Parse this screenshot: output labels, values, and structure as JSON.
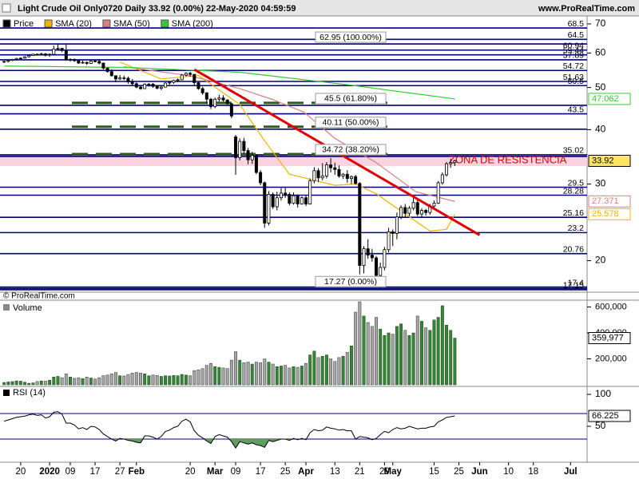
{
  "header": {
    "title": "Light Crude Oil Only0720 Daily 33.92 (0.00%) 22-May-2020 04:59:59",
    "site": "www.ProRealTime.com",
    "copyright": "© ProRealTime.com"
  },
  "chart_data": [
    {
      "type": "candlestick",
      "name": "Price",
      "up_color": "#ffffff",
      "down_color": "#000000",
      "log_scale": true,
      "ylim": [
        17,
        73
      ],
      "yticks": [
        20,
        30,
        40,
        50,
        60,
        70
      ],
      "xlim": [
        -1,
        141
      ],
      "xticks": [
        {
          "value": 4,
          "label": "20"
        },
        {
          "value": 11,
          "label": "2020"
        },
        {
          "value": 16,
          "label": "09"
        },
        {
          "value": 22,
          "label": "17"
        },
        {
          "value": 28,
          "label": "27"
        },
        {
          "value": 32,
          "label": "Feb"
        },
        {
          "value": 45,
          "label": "20"
        },
        {
          "value": 51,
          "label": "Mar"
        },
        {
          "value": 56,
          "label": "09"
        },
        {
          "value": 62,
          "label": "17"
        },
        {
          "value": 68,
          "label": "25"
        },
        {
          "value": 73,
          "label": "Apr"
        },
        {
          "value": 80,
          "label": "13"
        },
        {
          "value": 86,
          "label": "21"
        },
        {
          "value": 92,
          "label": "29"
        },
        {
          "value": 94,
          "label": "May"
        },
        {
          "value": 104,
          "label": "15"
        },
        {
          "value": 110,
          "label": "25"
        },
        {
          "value": 115,
          "label": "Jun"
        },
        {
          "value": 122,
          "label": "10"
        },
        {
          "value": 128,
          "label": "18"
        },
        {
          "value": 137,
          "label": "Jul"
        }
      ],
      "ohlc": [
        [
          57.2,
          57.6,
          56.9,
          57.4
        ],
        [
          57.4,
          57.9,
          57.1,
          57.7
        ],
        [
          57.7,
          58.2,
          57.5,
          58.0
        ],
        [
          58.0,
          58.5,
          57.7,
          58.3
        ],
        [
          58.3,
          58.6,
          57.9,
          58.4
        ],
        [
          58.4,
          59.0,
          58.3,
          58.8
        ],
        [
          58.8,
          59.4,
          58.6,
          59.2
        ],
        [
          59.2,
          59.8,
          59.1,
          59.6
        ],
        [
          59.6,
          59.9,
          59.2,
          59.5
        ],
        [
          59.5,
          60.1,
          59.3,
          59.7
        ],
        [
          59.7,
          60.0,
          58.9,
          59.3
        ],
        [
          59.4,
          59.9,
          58.8,
          59.6
        ],
        [
          59.6,
          62.4,
          59.5,
          61.3
        ],
        [
          61.4,
          62.95,
          60.9,
          61.5
        ],
        [
          61.5,
          61.6,
          60.3,
          60.8
        ],
        [
          60.8,
          62.8,
          57.6,
          58.0
        ],
        [
          58.0,
          58.4,
          57.3,
          58.0
        ],
        [
          58.0,
          58.3,
          57.3,
          57.6
        ],
        [
          57.6,
          57.9,
          56.6,
          56.9
        ],
        [
          56.9,
          57.6,
          56.7,
          57.1
        ],
        [
          57.1,
          57.4,
          56.4,
          56.8
        ],
        [
          56.8,
          57.6,
          56.6,
          57.5
        ],
        [
          57.5,
          57.9,
          57.1,
          57.4
        ],
        [
          57.4,
          58.1,
          56.5,
          56.9
        ],
        [
          56.9,
          57.0,
          55.0,
          55.4
        ],
        [
          55.4,
          55.6,
          54.1,
          54.4
        ],
        [
          54.4,
          55.0,
          53.0,
          53.2
        ],
        [
          53.2,
          53.3,
          51.4,
          52.3
        ],
        [
          52.3,
          53.4,
          52.0,
          52.6
        ],
        [
          52.6,
          53.2,
          52.0,
          52.5
        ],
        [
          52.5,
          53.0,
          51.0,
          51.5
        ],
        [
          51.5,
          52.3,
          50.5,
          51.0
        ],
        [
          51.0,
          51.4,
          49.8,
          50.1
        ],
        [
          50.1,
          50.7,
          49.4,
          49.7
        ],
        [
          49.7,
          51.1,
          49.6,
          50.9
        ],
        [
          50.9,
          51.2,
          50.2,
          50.9
        ],
        [
          50.9,
          51.2,
          49.9,
          50.3
        ],
        [
          50.3,
          50.6,
          49.5,
          49.8
        ],
        [
          49.8,
          50.4,
          49.3,
          50.1
        ],
        [
          50.1,
          51.4,
          50.0,
          51.2
        ],
        [
          51.2,
          51.7,
          50.7,
          51.4
        ],
        [
          51.4,
          52.1,
          51.0,
          51.9
        ],
        [
          51.9,
          52.4,
          51.4,
          52.1
        ],
        [
          52.1,
          53.7,
          52.0,
          53.4
        ],
        [
          53.4,
          54.2,
          53.0,
          53.9
        ],
        [
          53.9,
          54.3,
          52.9,
          53.6
        ],
        [
          53.6,
          53.7,
          50.6,
          51.3
        ],
        [
          51.3,
          51.7,
          49.4,
          49.7
        ],
        [
          49.7,
          50.2,
          48.1,
          48.6
        ],
        [
          48.6,
          48.8,
          46.0,
          47.0
        ],
        [
          47.0,
          47.3,
          44.6,
          45.2
        ],
        [
          45.2,
          47.4,
          44.8,
          47.0
        ],
        [
          47.0,
          48.1,
          46.4,
          47.3
        ],
        [
          47.3,
          48.0,
          46.4,
          46.8
        ],
        [
          46.8,
          47.0,
          45.4,
          45.9
        ],
        [
          45.9,
          46.0,
          42.5,
          43.0
        ],
        [
          38.5,
          38.9,
          31.5,
          34.5
        ],
        [
          34.5,
          38.2,
          34.0,
          37.6
        ],
        [
          37.6,
          38.3,
          35.2,
          35.8
        ],
        [
          35.8,
          36.3,
          33.3,
          34.1
        ],
        [
          34.1,
          35.6,
          33.4,
          34.9
        ],
        [
          34.9,
          35.0,
          31.6,
          31.9
        ],
        [
          31.9,
          32.3,
          29.8,
          30.2
        ],
        [
          30.2,
          30.4,
          23.8,
          24.4
        ],
        [
          24.4,
          28.9,
          24.1,
          28.4
        ],
        [
          28.4,
          28.7,
          26.3,
          26.6
        ],
        [
          26.6,
          28.8,
          26.1,
          27.9
        ],
        [
          27.9,
          29.4,
          27.5,
          28.6
        ],
        [
          28.6,
          29.5,
          27.9,
          28.4
        ],
        [
          28.4,
          28.7,
          26.8,
          27.1
        ],
        [
          27.1,
          28.7,
          26.9,
          28.2
        ],
        [
          28.2,
          28.4,
          26.5,
          27.0
        ],
        [
          27.0,
          28.1,
          26.9,
          27.9
        ],
        [
          27.9,
          28.2,
          26.7,
          27.0
        ],
        [
          27.0,
          30.9,
          26.9,
          30.5
        ],
        [
          30.5,
          32.8,
          30.1,
          32.2
        ],
        [
          32.2,
          32.6,
          30.3,
          31.0
        ],
        [
          31.0,
          33.5,
          30.6,
          31.3
        ],
        [
          31.3,
          33.7,
          30.9,
          33.2
        ],
        [
          33.2,
          34.4,
          31.9,
          32.7
        ],
        [
          32.7,
          33.6,
          31.5,
          32.4
        ],
        [
          32.4,
          33.1,
          31.0,
          31.3
        ],
        [
          31.3,
          31.8,
          30.8,
          31.6
        ],
        [
          31.6,
          32.3,
          30.2,
          30.9
        ],
        [
          30.9,
          31.4,
          30.0,
          31.2
        ],
        [
          31.2,
          31.5,
          29.9,
          30.1
        ],
        [
          30.1,
          30.3,
          18.6,
          19.5
        ],
        [
          19.5,
          21.6,
          18.7,
          21.3
        ],
        [
          21.3,
          22.4,
          20.2,
          20.6
        ],
        [
          20.6,
          21.3,
          19.9,
          20.3
        ],
        [
          20.3,
          20.5,
          17.9,
          18.5
        ],
        [
          18.5,
          19.8,
          17.27,
          19.3
        ],
        [
          19.3,
          21.5,
          19.0,
          21.2
        ],
        [
          21.2,
          23.8,
          20.9,
          23.3
        ],
        [
          23.3,
          23.6,
          21.6,
          23.1
        ],
        [
          23.1,
          25.8,
          22.4,
          25.2
        ],
        [
          25.2,
          26.8,
          24.9,
          26.5
        ],
        [
          26.5,
          27.0,
          25.2,
          25.7
        ],
        [
          25.7,
          26.7,
          25.3,
          26.4
        ],
        [
          26.4,
          27.9,
          26.1,
          27.2
        ],
        [
          27.2,
          27.6,
          25.3,
          25.6
        ],
        [
          25.6,
          26.4,
          25.1,
          26.1
        ],
        [
          26.1,
          26.3,
          25.4,
          25.8
        ],
        [
          25.8,
          27.0,
          25.5,
          26.7
        ],
        [
          26.7,
          27.5,
          26.2,
          27.1
        ],
        [
          27.1,
          30.5,
          27.0,
          30.2
        ],
        [
          30.2,
          31.9,
          29.9,
          31.5
        ],
        [
          31.5,
          33.7,
          31.2,
          33.4
        ],
        [
          33.4,
          34.3,
          32.7,
          33.6
        ],
        [
          33.6,
          34.1,
          33.0,
          33.92
        ]
      ],
      "sma": [
        {
          "name": "SMA (20)",
          "color": "#f0b400",
          "x": [
            28,
            38,
            47,
            57,
            63,
            69,
            80,
            85,
            90,
            96,
            103,
            107,
            109
          ],
          "values": [
            57.2,
            52.3,
            53.3,
            45.7,
            37.7,
            31.6,
            29.8,
            30.0,
            28.5,
            26.0,
            23.4,
            23.6,
            25.578
          ]
        },
        {
          "name": "SMA (50)",
          "color": "#d98080",
          "x": [
            29,
            45,
            57,
            65,
            72.5,
            80,
            90,
            99.6,
            109
          ],
          "values": [
            55.8,
            53.2,
            49.7,
            46.9,
            43.9,
            38.2,
            33.6,
            28.8,
            27.371
          ]
        },
        {
          "name": "SMA (200)",
          "color": "#33cc33",
          "x": [
            0,
            30,
            57,
            84,
            109
          ],
          "values": [
            56.0,
            55.6,
            54.2,
            50.6,
            47.062
          ]
        }
      ],
      "levels": [
        68.5,
        64.5,
        60.94,
        59.44,
        57.89,
        54.72,
        51.63,
        50.5,
        43.5,
        35.02,
        29.5,
        28.28,
        25.16,
        23.2,
        20.76,
        17.4,
        17.15
      ],
      "level_color": "#000080",
      "fib": [
        {
          "label": "62.95 (100.00%)",
          "value": 62.95,
          "dashed": false
        },
        {
          "label": "45.5 (61.80%)",
          "value": 45.5,
          "dashed": true
        },
        {
          "label": "40.11 (50.00%)",
          "value": 40.11,
          "dashed": true
        },
        {
          "label": "34.72 (38.20%)",
          "value": 34.72,
          "dashed": true
        },
        {
          "label": "17.27 (0.00%)",
          "value": 17.27,
          "dashed": false
        }
      ],
      "fib_dash_color": "#2f5a1e",
      "trendline": {
        "color": "#e00000",
        "x": [
          46,
          115
        ],
        "values": [
          55.0,
          22.9
        ]
      },
      "zone": {
        "label": "ZONA DE RESISTENCIA",
        "range": [
          33.0,
          35.02
        ],
        "color": "#f9d3df",
        "text_color": "#e00000"
      }
    },
    {
      "type": "volume",
      "title": "Volume",
      "up_color": "#2e8b2e",
      "down_color": "#a6a6a6",
      "ylim": [
        0,
        640000
      ],
      "yticks": [
        {
          "value": 200000,
          "label": "200,000"
        },
        {
          "value": 400000,
          "label": "400,000"
        },
        {
          "value": 600000,
          "label": "600,000"
        }
      ],
      "last_label": "359,977",
      "values": [
        18000,
        22000,
        25000,
        30000,
        28000,
        20000,
        12000,
        15000,
        25000,
        30000,
        28000,
        35000,
        60000,
        65000,
        55000,
        85000,
        60000,
        50000,
        55000,
        48000,
        60000,
        52000,
        45000,
        55000,
        70000,
        75000,
        85000,
        95000,
        70000,
        68000,
        80000,
        90000,
        95000,
        90000,
        85000,
        70000,
        75000,
        72000,
        65000,
        70000,
        68000,
        72000,
        70000,
        80000,
        75000,
        70000,
        110000,
        115000,
        125000,
        150000,
        165000,
        140000,
        135000,
        130000,
        125000,
        190000,
        255000,
        190000,
        170000,
        175000,
        160000,
        175000,
        170000,
        200000,
        175000,
        160000,
        140000,
        145000,
        150000,
        130000,
        140000,
        135000,
        145000,
        165000,
        230000,
        260000,
        210000,
        220000,
        230000,
        200000,
        180000,
        210000,
        220000,
        250000,
        300000,
        560000,
        640000,
        530000,
        480000,
        450000,
        520000,
        430000,
        380000,
        400000,
        390000,
        450000,
        470000,
        420000,
        380000,
        400000,
        530000,
        490000,
        440000,
        420000,
        500000,
        520000,
        610000,
        460000,
        420000,
        359977
      ]
    },
    {
      "type": "rsi",
      "title": "RSI (14)",
      "color": "#000000",
      "fill_color": "#5f9e5f",
      "level_color": "#000080",
      "ylim": [
        0,
        100
      ],
      "yticks": [
        50,
        100
      ],
      "levels": [
        70,
        30
      ],
      "values": [
        58,
        60,
        62,
        64,
        65,
        66,
        68,
        69,
        67,
        68,
        63,
        65,
        72,
        73,
        69,
        55,
        55,
        52,
        46,
        48,
        45,
        50,
        49,
        45,
        38,
        34,
        30,
        27,
        31,
        30,
        28,
        27,
        25,
        24,
        35,
        35,
        33,
        30,
        34,
        42,
        44,
        48,
        50,
        58,
        61,
        57,
        43,
        36,
        32,
        27,
        23,
        34,
        37,
        35,
        33,
        26,
        16,
        26,
        24,
        22,
        24,
        21,
        20,
        17,
        28,
        26,
        28,
        30,
        30,
        28,
        31,
        29,
        31,
        29,
        40,
        45,
        43,
        44,
        49,
        47,
        46,
        44,
        45,
        43,
        43,
        30,
        34,
        33,
        32,
        29,
        31,
        37,
        42,
        40,
        45,
        48,
        46,
        47,
        50,
        48,
        46,
        47,
        47,
        49,
        50,
        57,
        60,
        64,
        65,
        66.225
      ]
    }
  ]
}
